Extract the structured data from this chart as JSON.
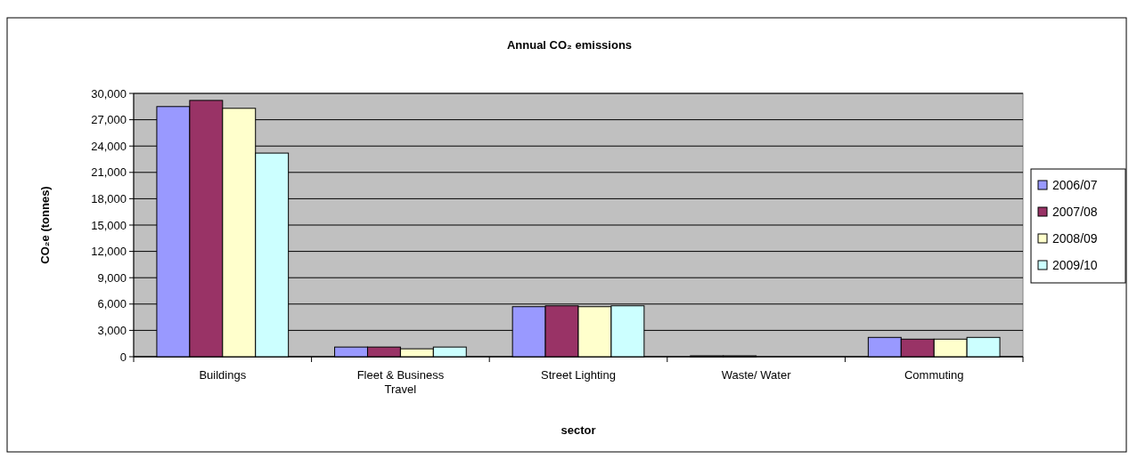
{
  "chart_data": {
    "type": "bar",
    "title": "Annual CO₂ emissions",
    "xlabel": "sector",
    "ylabel": "CO₂e (tonnes)",
    "categories": [
      "Buildings",
      "Fleet & Business Travel",
      "Street Lighting",
      "Waste/ Water",
      "Commuting"
    ],
    "series": [
      {
        "name": "2006/07",
        "color": "#9999ff",
        "values": [
          28500,
          1100,
          5700,
          100,
          2200
        ]
      },
      {
        "name": "2007/08",
        "color": "#993366",
        "values": [
          29200,
          1100,
          5800,
          100,
          2000
        ]
      },
      {
        "name": "2008/09",
        "color": "#ffffcc",
        "values": [
          28300,
          900,
          5700,
          0,
          2000
        ]
      },
      {
        "name": "2009/10",
        "color": "#ccffff",
        "values": [
          23200,
          1100,
          5800,
          0,
          2200
        ]
      }
    ],
    "ylim": [
      0,
      30000
    ],
    "yticks": [
      {
        "value": 0,
        "label": "0"
      },
      {
        "value": 3000,
        "label": "3,000"
      },
      {
        "value": 6000,
        "label": "6,000"
      },
      {
        "value": 9000,
        "label": "9,000"
      },
      {
        "value": 12000,
        "label": "12,000"
      },
      {
        "value": 15000,
        "label": "15,000"
      },
      {
        "value": 18000,
        "label": "18,000"
      },
      {
        "value": 21000,
        "label": "21,000"
      },
      {
        "value": 24000,
        "label": "24,000"
      },
      {
        "value": 27000,
        "label": "27,000"
      },
      {
        "value": 30000,
        "label": "30,000"
      }
    ],
    "grid": "y",
    "legend": "right"
  }
}
